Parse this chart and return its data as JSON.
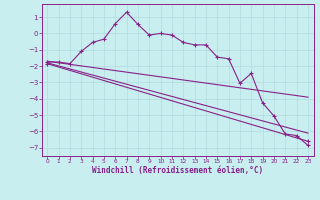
{
  "xlabel": "Windchill (Refroidissement éolien,°C)",
  "background_color": "#c8eef0",
  "grid_color": "#b0dce0",
  "line_color": "#882288",
  "ylim": [
    -7.5,
    1.8
  ],
  "xlim": [
    -0.5,
    23.5
  ],
  "yticks": [
    1,
    0,
    -1,
    -2,
    -3,
    -4,
    -5,
    -6,
    -7
  ],
  "xticks": [
    0,
    1,
    2,
    3,
    4,
    5,
    6,
    7,
    8,
    9,
    10,
    11,
    12,
    13,
    14,
    15,
    16,
    17,
    18,
    19,
    20,
    21,
    22,
    23
  ],
  "series1_x": [
    0,
    1,
    2,
    3,
    4,
    5,
    6,
    7,
    8,
    9,
    10,
    11,
    12,
    13,
    14,
    15,
    16,
    17,
    18,
    19,
    20,
    21,
    22,
    23
  ],
  "series1_y": [
    -1.75,
    -1.75,
    -1.85,
    -1.1,
    -0.55,
    -0.35,
    0.6,
    1.3,
    0.55,
    -0.1,
    0.0,
    -0.1,
    -0.55,
    -0.7,
    -0.7,
    -1.45,
    -1.55,
    -3.05,
    -2.45,
    -4.25,
    -5.05,
    -6.15,
    -6.25,
    -6.85
  ],
  "series2_x": [
    0,
    23
  ],
  "series2_y": [
    -1.7,
    -3.9
  ],
  "series3_x": [
    0,
    23
  ],
  "series3_y": [
    -1.8,
    -6.1
  ],
  "series4_x": [
    0,
    23
  ],
  "series4_y": [
    -1.85,
    -6.6
  ]
}
